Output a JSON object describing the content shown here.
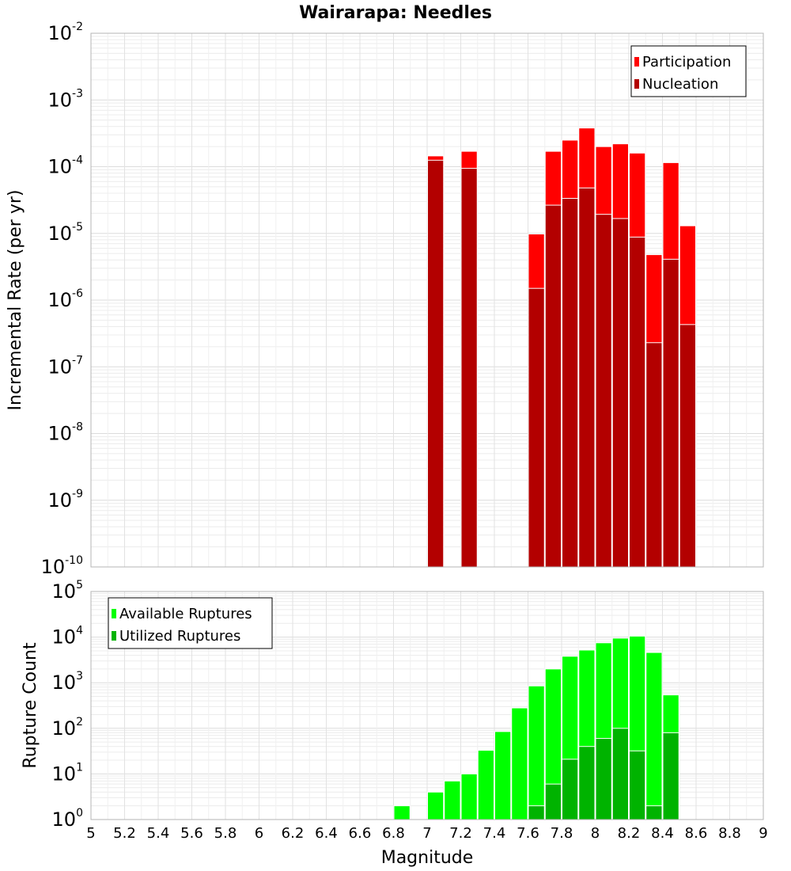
{
  "chart_data": [
    {
      "type": "bar",
      "title": "Wairarapa: Needles",
      "xlabel": "",
      "ylabel": "Incremental Rate (per yr)",
      "yscale": "log",
      "xlim": [
        5,
        9
      ],
      "ylim_exp": [
        -10,
        -2
      ],
      "grid": true,
      "legend_position": "top-right",
      "series": [
        {
          "name": "Participation",
          "color": "#ff0000",
          "points": [
            {
              "x": 7.05,
              "y": 0.000145
            },
            {
              "x": 7.25,
              "y": 0.00017
            },
            {
              "x": 7.65,
              "y": 9.8e-06
            },
            {
              "x": 7.75,
              "y": 0.00017
            },
            {
              "x": 7.85,
              "y": 0.00025
            },
            {
              "x": 7.95,
              "y": 0.00038
            },
            {
              "x": 8.05,
              "y": 0.0002
            },
            {
              "x": 8.15,
              "y": 0.00022
            },
            {
              "x": 8.25,
              "y": 0.00016
            },
            {
              "x": 8.35,
              "y": 4.8e-06
            },
            {
              "x": 8.45,
              "y": 0.000115
            },
            {
              "x": 8.55,
              "y": 1.3e-05
            }
          ]
        },
        {
          "name": "Nucleation",
          "color": "#b30000",
          "points": [
            {
              "x": 7.05,
              "y": 0.000125
            },
            {
              "x": 7.25,
              "y": 9.45e-05
            },
            {
              "x": 7.65,
              "y": 1.5e-06
            },
            {
              "x": 7.75,
              "y": 2.65e-05
            },
            {
              "x": 7.85,
              "y": 3.35e-05
            },
            {
              "x": 7.95,
              "y": 4.8e-05
            },
            {
              "x": 8.05,
              "y": 1.93e-05
            },
            {
              "x": 8.15,
              "y": 1.67e-05
            },
            {
              "x": 8.25,
              "y": 8.8e-06
            },
            {
              "x": 8.35,
              "y": 2.3e-07
            },
            {
              "x": 8.45,
              "y": 4.1e-06
            },
            {
              "x": 8.55,
              "y": 4.3e-07
            }
          ]
        }
      ]
    },
    {
      "type": "bar",
      "title": "",
      "xlabel": "Magnitude",
      "ylabel": "Rupture Count",
      "yscale": "log",
      "xlim": [
        5,
        9
      ],
      "ylim_exp": [
        0,
        5
      ],
      "grid": true,
      "legend_position": "top-left",
      "x_ticks": [
        "5",
        "5.2",
        "5.4",
        "5.6",
        "5.8",
        "6",
        "6.2",
        "6.4",
        "6.6",
        "6.8",
        "7",
        "7.2",
        "7.4",
        "7.6",
        "7.8",
        "8",
        "8.2",
        "8.4",
        "8.6",
        "8.8",
        "9"
      ],
      "series": [
        {
          "name": "Available Ruptures",
          "color": "#00ff00",
          "points": [
            {
              "x": 6.85,
              "y": 2
            },
            {
              "x": 6.95,
              "y": 1
            },
            {
              "x": 7.05,
              "y": 4
            },
            {
              "x": 7.15,
              "y": 7
            },
            {
              "x": 7.25,
              "y": 10
            },
            {
              "x": 7.35,
              "y": 33
            },
            {
              "x": 7.45,
              "y": 85
            },
            {
              "x": 7.55,
              "y": 280
            },
            {
              "x": 7.65,
              "y": 850
            },
            {
              "x": 7.75,
              "y": 2000
            },
            {
              "x": 7.85,
              "y": 3800
            },
            {
              "x": 7.95,
              "y": 5200
            },
            {
              "x": 8.05,
              "y": 7500
            },
            {
              "x": 8.15,
              "y": 9500
            },
            {
              "x": 8.25,
              "y": 10500
            },
            {
              "x": 8.35,
              "y": 4600
            },
            {
              "x": 8.45,
              "y": 540
            }
          ]
        },
        {
          "name": "Utilized Ruptures",
          "color": "#00b300",
          "points": [
            {
              "x": 7.05,
              "y": 1
            },
            {
              "x": 7.25,
              "y": 1
            },
            {
              "x": 7.55,
              "y": 1
            },
            {
              "x": 7.65,
              "y": 2
            },
            {
              "x": 7.75,
              "y": 6
            },
            {
              "x": 7.85,
              "y": 21
            },
            {
              "x": 7.95,
              "y": 40
            },
            {
              "x": 8.05,
              "y": 60
            },
            {
              "x": 8.15,
              "y": 100
            },
            {
              "x": 8.25,
              "y": 32
            },
            {
              "x": 8.35,
              "y": 2
            },
            {
              "x": 8.45,
              "y": 80
            },
            {
              "x": 8.55,
              "y": 1
            }
          ]
        }
      ]
    }
  ]
}
